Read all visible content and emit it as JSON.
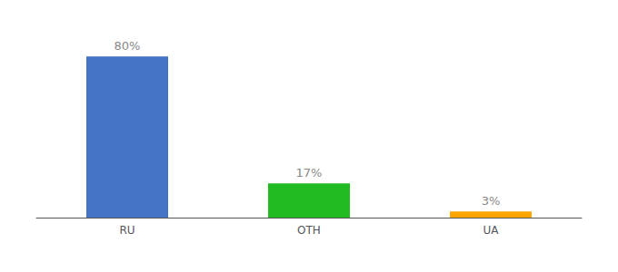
{
  "chart_data": {
    "type": "bar",
    "categories": [
      "RU",
      "OTH",
      "UA"
    ],
    "values": [
      80,
      17,
      3
    ],
    "value_labels": [
      "80%",
      "17%",
      "3%"
    ],
    "colors": [
      "#4472C4",
      "#22BB22",
      "#FFA500"
    ],
    "ylim": [
      0,
      90
    ],
    "data_labels": true,
    "tick_labels": "x",
    "grid": false
  }
}
